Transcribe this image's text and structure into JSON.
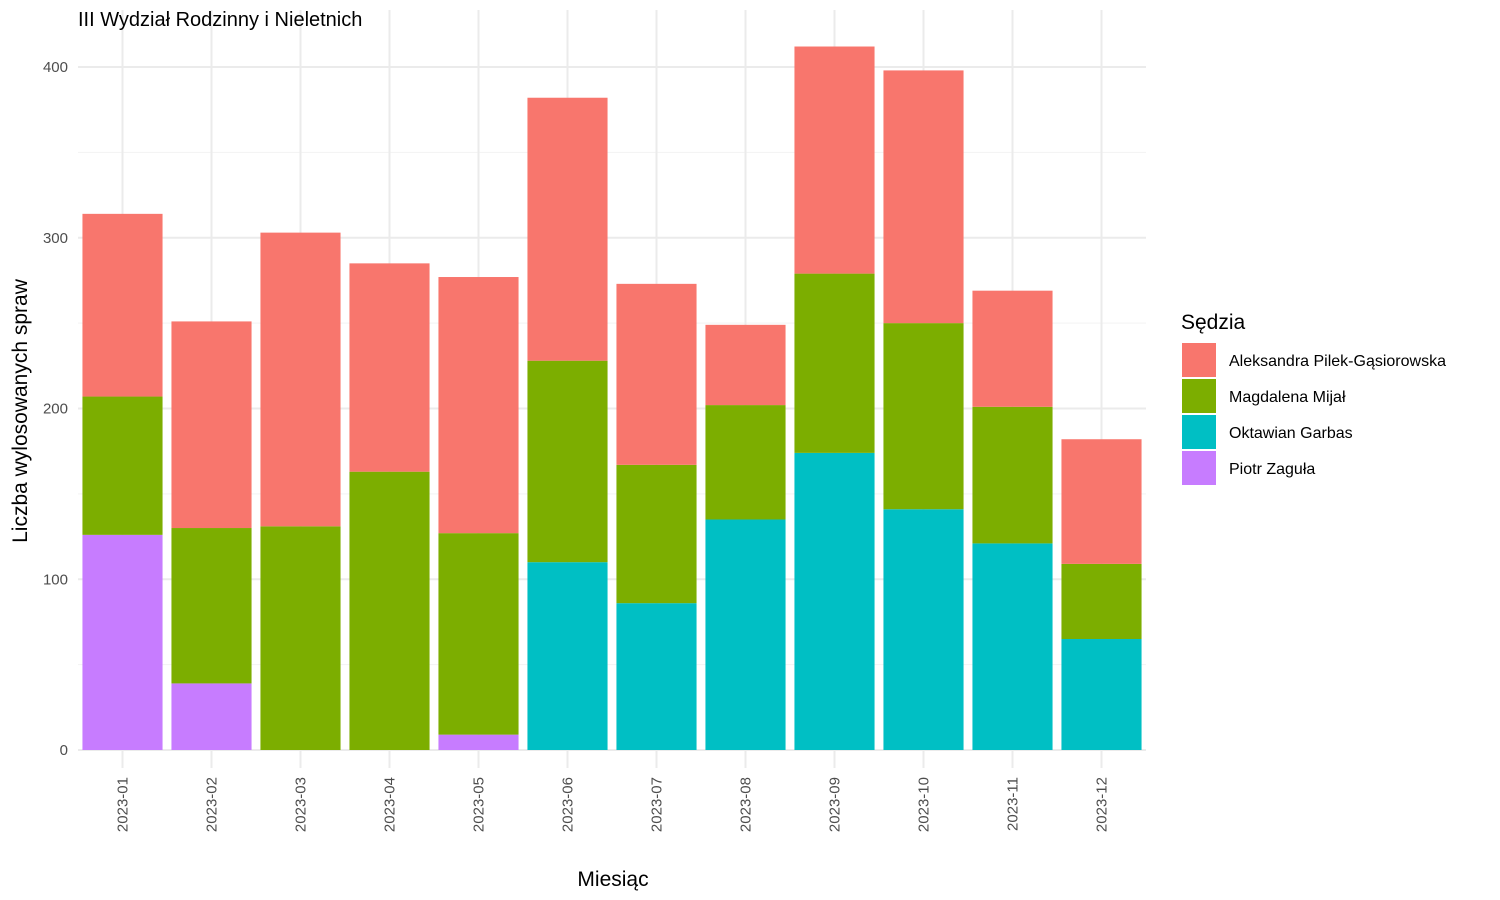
{
  "chart_data": {
    "type": "bar",
    "stacked": true,
    "title": "III Wydział Rodzinny i Nieletnich",
    "xlabel": "Miesiąc",
    "ylabel": "Liczba wylosowanych spraw",
    "ylim": [
      0,
      420
    ],
    "yticks": [
      0,
      100,
      200,
      300,
      400
    ],
    "grid": true,
    "legend": {
      "title": "Sędzia",
      "position": "right"
    },
    "categories": [
      "2023-01",
      "2023-02",
      "2023-03",
      "2023-04",
      "2023-05",
      "2023-06",
      "2023-07",
      "2023-08",
      "2023-09",
      "2023-10",
      "2023-11",
      "2023-12"
    ],
    "series": [
      {
        "name": "Piotr Zaguła",
        "color": "#C77CFF",
        "values": [
          126,
          39,
          0,
          0,
          9,
          0,
          0,
          0,
          0,
          0,
          0,
          0
        ]
      },
      {
        "name": "Oktawian Garbas",
        "color": "#00BFC4",
        "values": [
          0,
          0,
          0,
          0,
          0,
          110,
          86,
          135,
          174,
          141,
          121,
          65
        ]
      },
      {
        "name": "Magdalena Mijał",
        "color": "#7CAE00",
        "values": [
          81,
          91,
          131,
          163,
          118,
          118,
          81,
          67,
          105,
          109,
          80,
          44
        ]
      },
      {
        "name": "Aleksandra Pilek-Gąsiorowska",
        "color": "#F8766D",
        "values": [
          107,
          121,
          172,
          122,
          150,
          154,
          106,
          47,
          133,
          148,
          68,
          73
        ]
      }
    ],
    "legend_order": [
      "Aleksandra Pilek-Gąsiorowska",
      "Magdalena Mijał",
      "Oktawian Garbas",
      "Piotr Zaguła"
    ]
  }
}
